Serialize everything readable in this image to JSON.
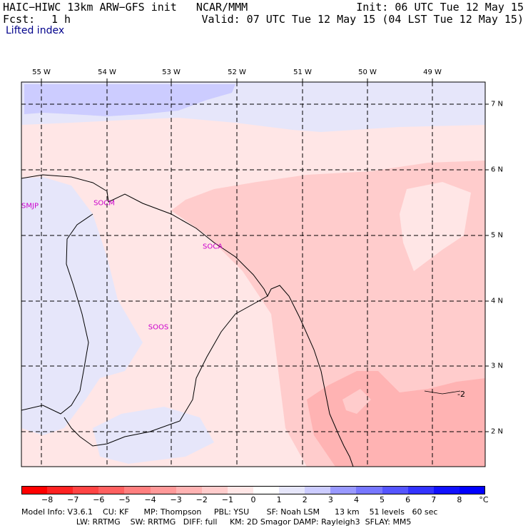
{
  "header": {
    "model_title": "HAIC−HIWC 13km ARW−GFS init   NCAR/MMM",
    "forecast_label": "Fcst:",
    "forecast_hour": "1 h",
    "init_time": "Init: 06 UTC Tue 12 May 15",
    "valid_time": "Valid: 07 UTC Tue 12 May 15 (04 LST Tue 12 May 15)",
    "field_name": "Lifted index"
  },
  "map": {
    "longitude_labels": [
      "55 W",
      "54 W",
      "53 W",
      "52 W",
      "51 W",
      "50 W",
      "49 W"
    ],
    "latitude_labels": [
      "7 N",
      "6 N",
      "5 N",
      "4 N",
      "3 N",
      "2 N"
    ],
    "stations": [
      "SMJP",
      "SOCM",
      "SOCA",
      "SOOS"
    ],
    "contour_label": "-2",
    "colors": {
      "very_light_blue": "#e6e6fa",
      "light_blue": "#ccccff",
      "pale_pink": "#ffe6e6",
      "light_pink": "#ffcccc",
      "pink": "#ffb3b3",
      "deep_pink": "#ff9999",
      "coastline": "#000000",
      "grid": "#000000"
    }
  },
  "colorbar": {
    "labels": [
      "−8",
      "−7",
      "−6",
      "−5",
      "−4",
      "−3",
      "−2",
      "−1",
      "0",
      "1",
      "2",
      "3",
      "4",
      "5",
      "6",
      "7",
      "8"
    ],
    "unit": "°C",
    "colors": [
      "#ff0000",
      "#ff2222",
      "#ff4444",
      "#ff6060",
      "#ff7f7f",
      "#ff9999",
      "#ffb3b3",
      "#ffcccc",
      "#ffe6e6",
      "#ffffff",
      "#e6e6fa",
      "#ccccff",
      "#9999ff",
      "#7777ff",
      "#5555ff",
      "#3333ff",
      "#1111ff",
      "#0000ff"
    ]
  },
  "footer": {
    "line1": "Model Info: V3.6.1    CU: KF      MP: Thompson     PBL: YSU       SF: Noah LSM      13 km    51 levels   60 sec",
    "line2": "                      LW: RRTMG    SW: RRTMG   DIFF: full     KM: 2D Smagor DAMP: Rayleigh3  SFLAY: MM5"
  }
}
